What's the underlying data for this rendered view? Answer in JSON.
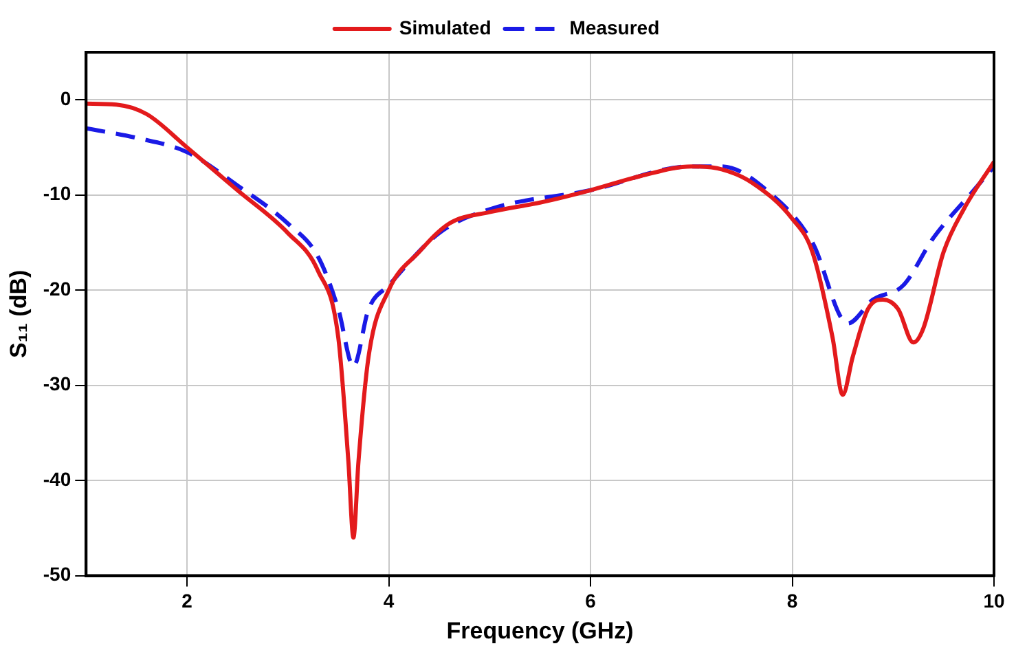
{
  "chart_data": {
    "type": "line",
    "xlabel": "Frequency (GHz)",
    "ylabel": "S₁₁ (dB)",
    "xlim": [
      1,
      10
    ],
    "xticks": [
      2,
      4,
      6,
      8,
      10
    ],
    "ylim": [
      -50,
      5
    ],
    "yticks": [
      -50,
      -40,
      -30,
      -20,
      -10,
      0
    ],
    "grid": true,
    "legend": "top",
    "marker": "none",
    "series": [
      {
        "name": "Simulated",
        "color": "#e31a1c",
        "line_style": "solid",
        "x": [
          1,
          1.3,
          1.6,
          2,
          2.5,
          3,
          3.3,
          3.5,
          3.6,
          3.65,
          3.7,
          3.8,
          4,
          4.3,
          4.6,
          5,
          5.5,
          6,
          6.5,
          7,
          7.3,
          7.6,
          8,
          8.2,
          8.4,
          8.5,
          8.6,
          8.75,
          8.9,
          9.05,
          9.2,
          9.3,
          9.5,
          9.7,
          10
        ],
        "values": [
          -0.4,
          -0.5,
          -1.5,
          -5,
          -9.5,
          -14,
          -18,
          -25,
          -38,
          -46,
          -38,
          -27,
          -20,
          -16,
          -13,
          -11.8,
          -10.8,
          -9.5,
          -8,
          -7,
          -7.3,
          -8.7,
          -12.5,
          -16,
          -25,
          -31,
          -27,
          -22,
          -21,
          -22,
          -25.5,
          -24,
          -16,
          -11.5,
          -6.5
        ]
      },
      {
        "name": "Measured",
        "color": "#1a1ae6",
        "line_style": "dashed",
        "x": [
          1,
          1.5,
          2,
          2.5,
          3,
          3.3,
          3.5,
          3.65,
          3.8,
          4,
          4.5,
          5,
          6,
          7,
          7.3,
          7.8,
          8.2,
          8.55,
          8.8,
          9.1,
          9.4,
          9.8,
          10
        ],
        "values": [
          -3,
          -4,
          -5.5,
          -9,
          -13,
          -16.5,
          -22,
          -28,
          -22,
          -19.5,
          -14,
          -11.5,
          -9.5,
          -7,
          -7,
          -10,
          -15,
          -23.5,
          -21,
          -19.5,
          -14.5,
          -9.5,
          -7
        ]
      }
    ]
  }
}
